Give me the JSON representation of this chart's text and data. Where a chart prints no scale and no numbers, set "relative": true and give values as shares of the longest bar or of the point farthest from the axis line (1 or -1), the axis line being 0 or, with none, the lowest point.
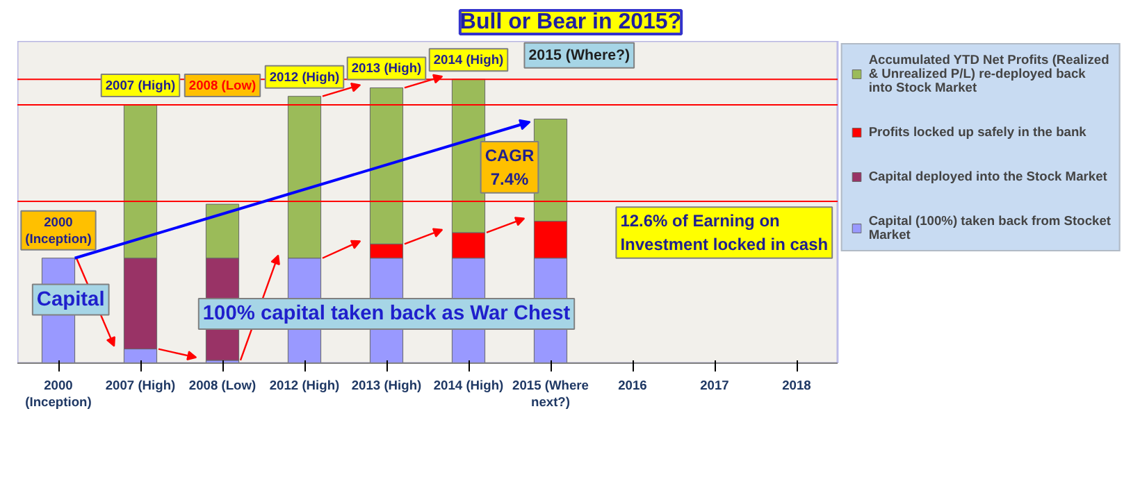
{
  "chart_data": {
    "type": "bar",
    "title": "Bull or Bear in 2015?",
    "relative": true,
    "stacked": true,
    "categories": [
      "2000 (Inception)",
      "2007 (High)",
      "2008 (Low)",
      "2012 (High)",
      "2013 (High)",
      "2014 (High)",
      "2015 (Where next?)",
      "2016",
      "2017",
      "2018"
    ],
    "series": [
      {
        "name": "Capital (100%) taken back from Stocket Market",
        "color": "#9999ff",
        "values": [
          0.37,
          0.05,
          0.01,
          0.37,
          0.37,
          0.37,
          0.37,
          null,
          null,
          null
        ]
      },
      {
        "name": "Capital deployed into the Stock Market",
        "color": "#993366",
        "values": [
          null,
          0.32,
          0.36,
          null,
          null,
          null,
          null,
          null,
          null,
          null
        ]
      },
      {
        "name": "Profits locked up safely in the bank",
        "color": "#ff0000",
        "values": [
          null,
          null,
          null,
          null,
          0.05,
          0.09,
          0.13,
          null,
          null,
          null
        ]
      },
      {
        "name": "Accumulated YTD Net Profits (Realized & Unrealized P/L) re-deployed back into Stock Market",
        "color": "#9bbb59",
        "values": [
          null,
          0.54,
          0.19,
          0.57,
          0.55,
          0.54,
          0.36,
          null,
          null,
          null
        ]
      }
    ],
    "ref_lines": [
      {
        "axis": "y",
        "value": 0.91,
        "color": "#ff0000"
      },
      {
        "axis": "y",
        "value": 0.57,
        "color": "#ff0000"
      },
      {
        "axis": "y",
        "value": 1.0,
        "color": "#ff0000"
      }
    ],
    "annotations": [
      {
        "text": "2000 (Inception)",
        "x": "2000 (Inception)",
        "y": 0.37
      },
      {
        "text": "2007 (High)",
        "x": "2007 (High)",
        "y": 0.91
      },
      {
        "text": "2008 (Low)",
        "x": "2008 (Low)",
        "y": 0.91
      },
      {
        "text": "2012 (High)",
        "x": "2012 (High)",
        "y": 0.94
      },
      {
        "text": "2013 (High)",
        "x": "2013 (High)",
        "y": 0.97
      },
      {
        "text": "2014 (High)",
        "x": "2014 (High)",
        "y": 1.0
      },
      "2015 (Where?)",
      "CAGR 7.4%",
      "12.6% of Earning on Investment locked in cash",
      "Capital",
      "100% capital taken back as War Chest"
    ],
    "legend": "right"
  }
}
